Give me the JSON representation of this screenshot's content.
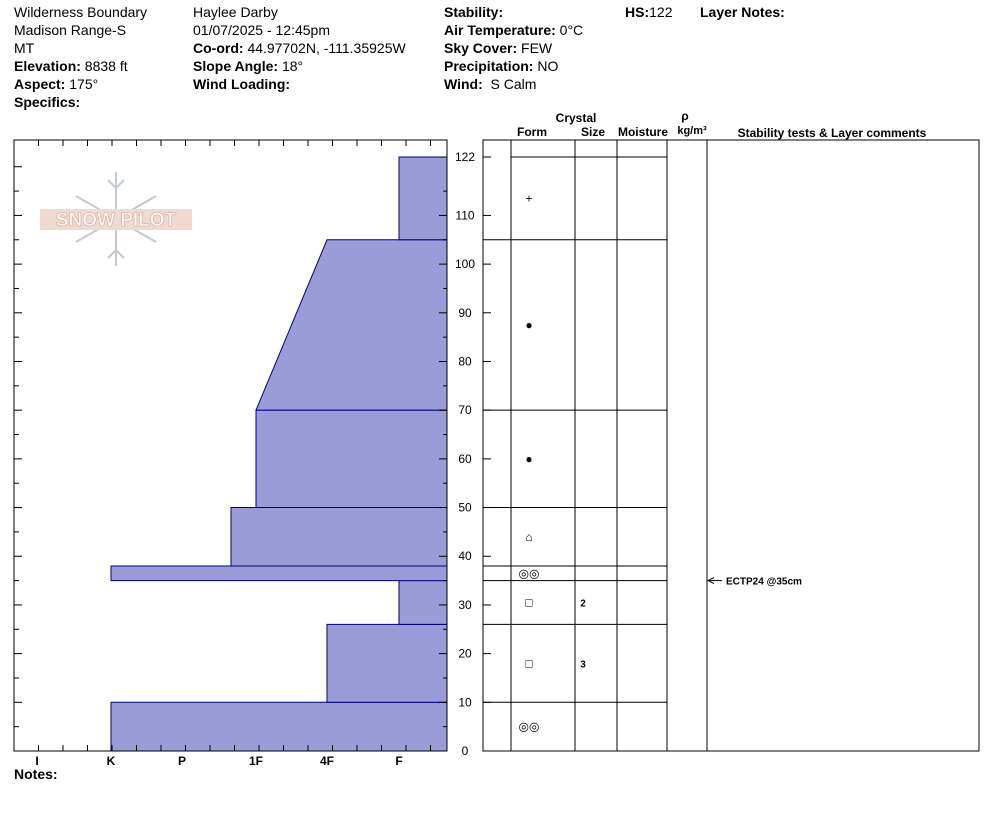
{
  "header": {
    "location_name": "Wilderness Boundary",
    "range": "Madison Range-S",
    "state": "MT",
    "elevation_label": "Elevation:",
    "elevation_value": "8838 ft",
    "aspect_label": "Aspect:",
    "aspect_value": "175°",
    "specifics_label": "Specifics:",
    "observer": "Haylee Darby",
    "datetime": "01/07/2025 - 12:45pm",
    "coord_label": "Co-ord:",
    "coord_value": "44.97702N, -111.35925W",
    "slope_label": "Slope Angle:",
    "slope_value": "18°",
    "wind_loading_label": "Wind Loading:",
    "stability_label": "Stability:",
    "air_temp_label": "Air Temperature:",
    "air_temp_value": "0°C",
    "sky_label": "Sky Cover:",
    "sky_value": "FEW",
    "precip_label": "Precipitation:",
    "precip_value": "NO",
    "wind_label": "Wind:",
    "wind_value": "S Calm",
    "hs_label": "HS:",
    "hs_value": "122",
    "layer_notes_label": "Layer Notes:"
  },
  "logo": {
    "text": "SNOW PILOT"
  },
  "columns": {
    "crystal": "Crystal",
    "form": "Form",
    "size": "Size",
    "moisture": "Moisture",
    "rho": "ρ",
    "density_unit": "kg/m³",
    "stability_comments": "Stability tests & Layer comments"
  },
  "notes_label": "Notes:",
  "colors": {
    "hardness_fill": "#9b9bd7",
    "hardness_stroke": "#000080"
  },
  "chart_data": {
    "type": "bar",
    "title": "",
    "xlabel": "",
    "ylabel": "",
    "ylim": [
      0,
      122
    ],
    "y_ticks": [
      "0",
      "10",
      "20",
      "30",
      "40",
      "50",
      "60",
      "70",
      "80",
      "90",
      "100",
      "110",
      "122"
    ],
    "hardness_scale": [
      "I",
      "K",
      "P",
      "1F",
      "4F",
      "F"
    ],
    "hardness_profile": [
      {
        "bottom": 0,
        "top": 10,
        "hardness_bottom": "K",
        "hardness_top": "K"
      },
      {
        "bottom": 10,
        "top": 26,
        "hardness_bottom": "4F",
        "hardness_top": "4F"
      },
      {
        "bottom": 26,
        "top": 35,
        "hardness_bottom": "F",
        "hardness_top": "F"
      },
      {
        "bottom": 35,
        "top": 38,
        "hardness_bottom": "K",
        "hardness_top": "K"
      },
      {
        "bottom": 38,
        "top": 50,
        "hardness_bottom": "1F-",
        "hardness_top": "1F-"
      },
      {
        "bottom": 50,
        "top": 70,
        "hardness_bottom": "1F",
        "hardness_top": "1F"
      },
      {
        "bottom": 70,
        "top": 105,
        "hardness_bottom": "1F",
        "hardness_top": "4F"
      },
      {
        "bottom": 105,
        "top": 122,
        "hardness_bottom": "F",
        "hardness_top": "F"
      }
    ],
    "layers": [
      {
        "bottom": 0,
        "top": 10,
        "form": "◎◎",
        "size": ""
      },
      {
        "bottom": 10,
        "top": 26,
        "form": "□",
        "size": "3"
      },
      {
        "bottom": 26,
        "top": 35,
        "form": "□",
        "size": "2"
      },
      {
        "bottom": 35,
        "top": 38,
        "form": "◎◎",
        "size": ""
      },
      {
        "bottom": 38,
        "top": 50,
        "form": "⌂",
        "size": ""
      },
      {
        "bottom": 50,
        "top": 70,
        "form": "●",
        "size": ""
      },
      {
        "bottom": 70,
        "top": 105,
        "form": "●",
        "size": ""
      },
      {
        "bottom": 105,
        "top": 122,
        "form": "+",
        "size": ""
      }
    ],
    "stability_tests": [
      {
        "height": 35,
        "label": "ECTP24 @35cm"
      }
    ]
  }
}
